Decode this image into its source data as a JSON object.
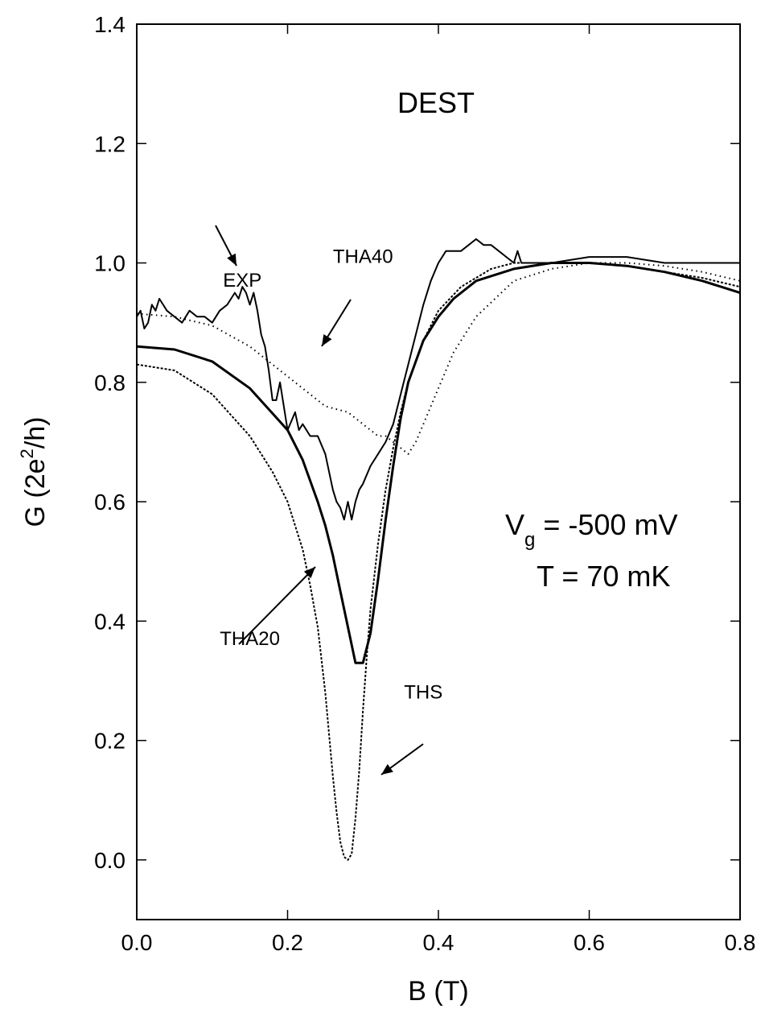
{
  "chart_data": {
    "type": "line",
    "title": "DEST",
    "xlabel": "B (T)",
    "ylabel_parts": {
      "pre": "G (2e",
      "sup": "2",
      "post": "/h)"
    },
    "xlim": [
      0.0,
      0.8
    ],
    "ylim": [
      -0.1,
      1.4
    ],
    "x_ticks": [
      "0.0",
      "0.2",
      "0.4",
      "0.6",
      "0.8"
    ],
    "y_ticks": [
      "0.0",
      "0.2",
      "0.4",
      "0.6",
      "0.8",
      "1.0",
      "1.2",
      "1.4"
    ],
    "grid": false,
    "conditions": {
      "vg_main": "V",
      "vg_sub": "g",
      "vg_value": " = -500 mV",
      "temperature": "T = 70 mK"
    },
    "series": [
      {
        "name": "EXP",
        "style": "solid-noisy",
        "x": [
          0.0,
          0.005,
          0.01,
          0.015,
          0.02,
          0.025,
          0.03,
          0.035,
          0.04,
          0.05,
          0.06,
          0.07,
          0.08,
          0.09,
          0.1,
          0.11,
          0.12,
          0.13,
          0.135,
          0.14,
          0.145,
          0.15,
          0.155,
          0.16,
          0.165,
          0.17,
          0.175,
          0.18,
          0.185,
          0.19,
          0.2,
          0.21,
          0.215,
          0.22,
          0.23,
          0.24,
          0.25,
          0.26,
          0.265,
          0.27,
          0.275,
          0.28,
          0.285,
          0.29,
          0.295,
          0.3,
          0.31,
          0.32,
          0.33,
          0.34,
          0.35,
          0.36,
          0.37,
          0.38,
          0.39,
          0.4,
          0.41,
          0.42,
          0.43,
          0.44,
          0.45,
          0.46,
          0.47,
          0.48,
          0.49,
          0.5,
          0.505,
          0.51,
          0.52,
          0.55,
          0.6,
          0.65,
          0.7,
          0.75,
          0.8
        ],
        "y": [
          0.91,
          0.92,
          0.89,
          0.9,
          0.93,
          0.92,
          0.94,
          0.93,
          0.92,
          0.91,
          0.9,
          0.92,
          0.91,
          0.91,
          0.9,
          0.92,
          0.93,
          0.95,
          0.94,
          0.96,
          0.95,
          0.93,
          0.95,
          0.92,
          0.88,
          0.86,
          0.82,
          0.77,
          0.77,
          0.8,
          0.72,
          0.75,
          0.72,
          0.73,
          0.71,
          0.71,
          0.68,
          0.62,
          0.6,
          0.59,
          0.57,
          0.6,
          0.57,
          0.6,
          0.62,
          0.63,
          0.66,
          0.68,
          0.7,
          0.73,
          0.78,
          0.83,
          0.88,
          0.93,
          0.97,
          1.0,
          1.02,
          1.02,
          1.02,
          1.03,
          1.04,
          1.03,
          1.03,
          1.02,
          1.01,
          1.0,
          1.02,
          1.0,
          1.0,
          1.0,
          1.01,
          1.01,
          1.0,
          1.0,
          1.0
        ]
      },
      {
        "name": "THA20",
        "style": "solid-thick",
        "x": [
          0.0,
          0.05,
          0.1,
          0.15,
          0.2,
          0.22,
          0.24,
          0.25,
          0.26,
          0.27,
          0.28,
          0.29,
          0.3,
          0.31,
          0.32,
          0.33,
          0.34,
          0.35,
          0.36,
          0.38,
          0.4,
          0.42,
          0.45,
          0.5,
          0.55,
          0.6,
          0.65,
          0.7,
          0.75,
          0.8
        ],
        "y": [
          0.86,
          0.855,
          0.835,
          0.79,
          0.72,
          0.67,
          0.6,
          0.56,
          0.51,
          0.45,
          0.39,
          0.33,
          0.33,
          0.38,
          0.47,
          0.57,
          0.66,
          0.74,
          0.8,
          0.87,
          0.91,
          0.94,
          0.97,
          0.99,
          1.0,
          1.0,
          0.995,
          0.985,
          0.97,
          0.95
        ]
      },
      {
        "name": "THS",
        "style": "dashed",
        "x": [
          0.0,
          0.05,
          0.1,
          0.15,
          0.18,
          0.2,
          0.22,
          0.23,
          0.24,
          0.25,
          0.255,
          0.26,
          0.265,
          0.27,
          0.275,
          0.28,
          0.285,
          0.29,
          0.295,
          0.3,
          0.305,
          0.31,
          0.32,
          0.33,
          0.34,
          0.35,
          0.36,
          0.38,
          0.4,
          0.43,
          0.47,
          0.5,
          0.55,
          0.6,
          0.65,
          0.7,
          0.75,
          0.8
        ],
        "y": [
          0.83,
          0.82,
          0.78,
          0.71,
          0.65,
          0.6,
          0.52,
          0.46,
          0.39,
          0.28,
          0.21,
          0.14,
          0.08,
          0.03,
          0.005,
          0.0,
          0.01,
          0.07,
          0.15,
          0.25,
          0.34,
          0.42,
          0.53,
          0.62,
          0.69,
          0.75,
          0.8,
          0.87,
          0.92,
          0.96,
          0.99,
          1.0,
          1.0,
          1.0,
          0.995,
          0.985,
          0.975,
          0.96
        ]
      },
      {
        "name": "THA40",
        "style": "dotted",
        "x": [
          0.0,
          0.05,
          0.1,
          0.15,
          0.2,
          0.25,
          0.28,
          0.3,
          0.32,
          0.33,
          0.34,
          0.35,
          0.36,
          0.37,
          0.38,
          0.4,
          0.42,
          0.45,
          0.5,
          0.55,
          0.6,
          0.65,
          0.7,
          0.75,
          0.8
        ],
        "y": [
          0.915,
          0.91,
          0.895,
          0.86,
          0.81,
          0.76,
          0.75,
          0.73,
          0.71,
          0.71,
          0.7,
          0.69,
          0.68,
          0.7,
          0.73,
          0.79,
          0.85,
          0.91,
          0.97,
          0.99,
          1.0,
          1.0,
          0.995,
          0.985,
          0.97
        ]
      }
    ],
    "annotations": [
      {
        "label": "EXP",
        "at": [
          0.14,
          0.96
        ],
        "arrow_to": [
          0.14,
          0.99
        ]
      },
      {
        "label": "THA40",
        "at": [
          0.3,
          1.0
        ],
        "arrow_to": [
          0.25,
          0.85
        ]
      },
      {
        "label": "THA20",
        "at": [
          0.15,
          0.36
        ],
        "arrow_to": [
          0.25,
          0.49
        ]
      },
      {
        "label": "THS",
        "at": [
          0.38,
          0.27
        ],
        "arrow_to": [
          0.32,
          0.17
        ]
      }
    ]
  }
}
